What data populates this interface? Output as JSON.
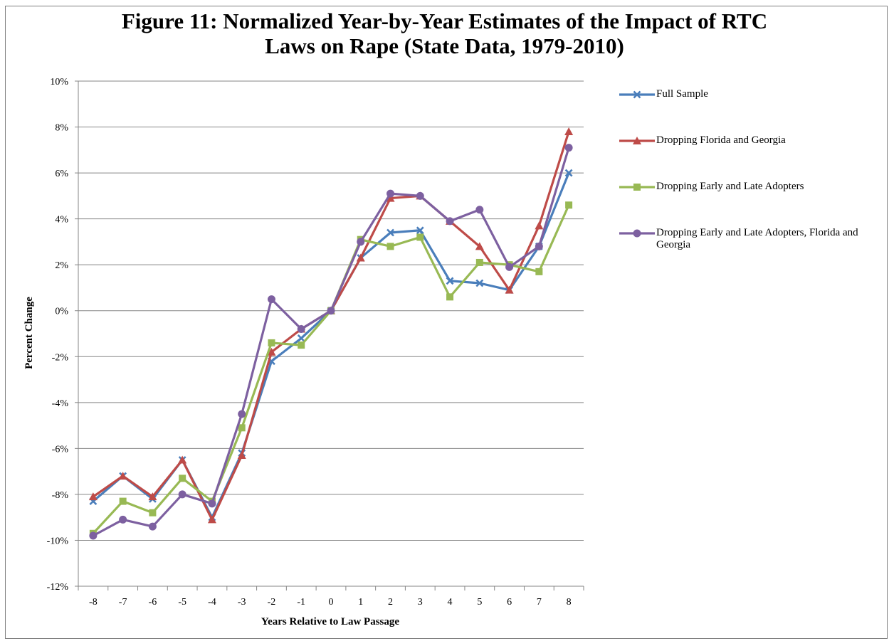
{
  "chart_data": {
    "type": "line",
    "title": "Figure 11: Normalized Year-by-Year Estimates of the Impact of RTC Laws on Rape (State Data, 1979-2010)",
    "title_lines": [
      "Figure 11: Normalized Year-by-Year Estimates of the Impact of RTC",
      "Laws on Rape (State Data, 1979-2010)"
    ],
    "xlabel": "Years Relative to Law Passage",
    "ylabel": "Percent Change",
    "x": [
      -8,
      -7,
      -6,
      -5,
      -4,
      -3,
      -2,
      -1,
      0,
      1,
      2,
      3,
      4,
      5,
      6,
      7,
      8
    ],
    "x_tick_labels": [
      "-8",
      "-7",
      "-6",
      "-5",
      "-4",
      "-3",
      "-2",
      "-1",
      "0",
      "1",
      "2",
      "3",
      "4",
      "5",
      "6",
      "7",
      "8"
    ],
    "ylim": [
      -12,
      10
    ],
    "y_ticks": [
      -12,
      -10,
      -8,
      -6,
      -4,
      -2,
      0,
      2,
      4,
      6,
      8,
      10
    ],
    "y_tick_labels": [
      "-12%",
      "-10%",
      "-8%",
      "-6%",
      "-4%",
      "-2%",
      "0%",
      "2%",
      "4%",
      "6%",
      "8%",
      "10%"
    ],
    "grid": "horizontal",
    "legend_position": "right",
    "series": [
      {
        "name": "Full Sample",
        "color": "#4a7ebb",
        "marker": "x",
        "values": [
          -8.3,
          -7.2,
          -8.2,
          -6.5,
          -9.0,
          -6.2,
          -2.2,
          -1.2,
          0.0,
          2.3,
          3.4,
          3.5,
          1.3,
          1.2,
          0.9,
          2.8,
          6.0
        ]
      },
      {
        "name": "Dropping Florida and Georgia",
        "color": "#be4b48",
        "marker": "triangle",
        "values": [
          -8.1,
          -7.2,
          -8.1,
          -6.5,
          -9.1,
          -6.3,
          -1.8,
          -0.8,
          0.0,
          2.3,
          4.9,
          5.0,
          3.9,
          2.8,
          0.9,
          3.7,
          7.8
        ]
      },
      {
        "name": "Dropping Early and Late Adopters",
        "color": "#98b954",
        "marker": "square",
        "values": [
          -9.7,
          -8.3,
          -8.8,
          -7.3,
          -8.3,
          -5.1,
          -1.4,
          -1.5,
          0.0,
          3.1,
          2.8,
          3.2,
          0.6,
          2.1,
          2.0,
          1.7,
          4.6
        ]
      },
      {
        "name": "Dropping Early and Late Adopters, Florida and Georgia",
        "color": "#7d60a0",
        "marker": "circle",
        "values": [
          -9.8,
          -9.1,
          -9.4,
          -8.0,
          -8.4,
          -4.5,
          0.5,
          -0.8,
          0.0,
          3.0,
          5.1,
          5.0,
          3.9,
          4.4,
          1.9,
          2.8,
          7.1
        ]
      }
    ]
  }
}
